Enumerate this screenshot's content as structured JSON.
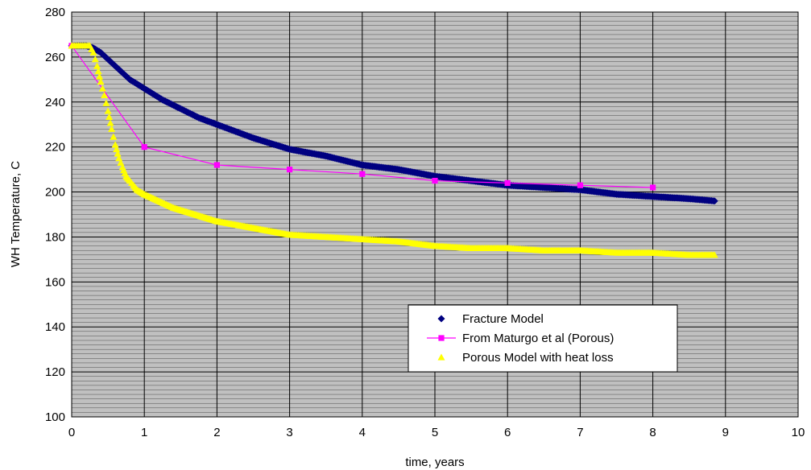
{
  "chart_data": {
    "type": "scatter",
    "title": "",
    "xlabel": "time, years",
    "ylabel": "WH Temperature, C",
    "xlim": [
      0,
      10
    ],
    "ylim": [
      100,
      280
    ],
    "xticks": [
      "0",
      "1",
      "2",
      "3",
      "4",
      "5",
      "6",
      "7",
      "8",
      "9",
      "10"
    ],
    "yticks": [
      "100",
      "120",
      "140",
      "160",
      "180",
      "200",
      "220",
      "240",
      "260",
      "280"
    ],
    "grid": true,
    "plot_background": "#c0c0c0",
    "legend_position": "bottom-right",
    "series": [
      {
        "name": "Fracture Model",
        "marker": "diamond",
        "color": "#000080",
        "line": false,
        "x": [
          0,
          0.1,
          0.2,
          0.3,
          0.4,
          0.5,
          0.6,
          0.7,
          0.8,
          0.9,
          1.0,
          1.25,
          1.5,
          1.75,
          2.0,
          2.5,
          3.0,
          3.5,
          4.0,
          4.5,
          5.0,
          5.5,
          6.0,
          6.5,
          7.0,
          7.5,
          8.0,
          8.5,
          8.85
        ],
        "y": [
          265,
          265,
          265,
          264,
          262,
          259,
          256,
          253,
          250,
          248,
          246,
          241,
          237,
          233,
          230,
          224,
          219,
          216,
          212,
          210,
          207,
          205,
          203,
          202,
          201,
          199,
          198,
          197,
          196
        ]
      },
      {
        "name": "From Maturgo et al (Porous)",
        "marker": "square",
        "color": "#ff00ff",
        "line": true,
        "x": [
          0,
          1,
          2,
          3,
          4,
          5,
          6,
          7,
          8
        ],
        "y": [
          265,
          220,
          212,
          210,
          208,
          205,
          204,
          203,
          202
        ]
      },
      {
        "name": "Porous Model with heat loss",
        "marker": "triangle",
        "color": "#ffff00",
        "line": false,
        "x": [
          0,
          0.25,
          0.3,
          0.35,
          0.4,
          0.45,
          0.5,
          0.55,
          0.6,
          0.65,
          0.7,
          0.75,
          0.8,
          0.85,
          0.9,
          1.0,
          1.2,
          1.4,
          1.6,
          1.8,
          2.0,
          2.5,
          3.0,
          3.5,
          4.0,
          4.5,
          5.0,
          5.5,
          6.0,
          6.5,
          7.0,
          7.5,
          8.0,
          8.5,
          8.85
        ],
        "y": [
          265,
          265,
          262,
          256,
          249,
          243,
          236,
          228,
          221,
          215,
          211,
          207,
          205,
          203,
          201,
          199,
          196,
          193,
          191,
          189,
          187,
          184,
          181,
          180,
          179,
          178,
          176,
          175,
          175,
          174,
          174,
          173,
          173,
          172,
          172
        ]
      }
    ]
  }
}
